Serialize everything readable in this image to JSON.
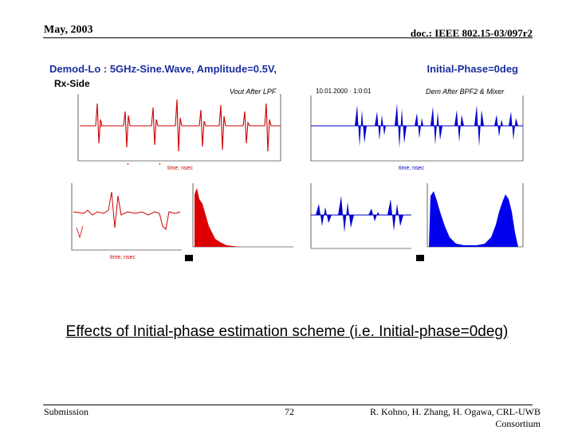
{
  "header": {
    "date": "May, 2003",
    "doc_id": "doc.: IEEE 802.15-03/097r2"
  },
  "figure": {
    "title_left": "Demod-Lo : 5GHz-Sine.Wave, Amplitude=0.5V,",
    "title_right": "Initial-Phase=0deg",
    "rx_side": "Rx-Side",
    "panel_top_left_label": "Vout After LPF",
    "panel_top_right_label": "Dem After BPF2 & Mixer",
    "panel_top_right_time": "10.01.2000 · 1:0:01",
    "colors": {
      "red_trace": "#cc0000",
      "blue_trace": "#0000cc",
      "title": "#1a2ea0"
    }
  },
  "caption": "Effects of Initial-phase estimation scheme (i.e. Initial-phase=0deg)",
  "footer": {
    "left": "Submission",
    "page": "72",
    "right": "R. Kohno, H. Zhang, H. Ogawa, CRL-UWB Consortium"
  }
}
